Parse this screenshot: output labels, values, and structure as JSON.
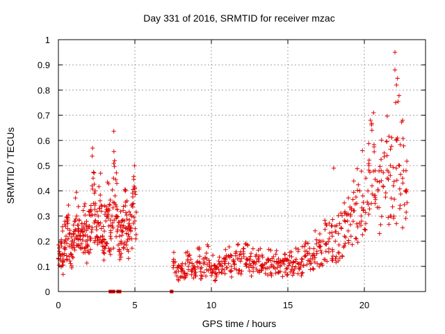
{
  "chart_data": {
    "type": "scatter",
    "title": "Day 331 of 2016, SRMTID for receiver mzac",
    "xlabel": "GPS time / hours",
    "ylabel": "SRMTID / TECUs",
    "xlim": [
      0,
      24
    ],
    "ylim": [
      0,
      1
    ],
    "x_ticks": [
      "0",
      "5",
      "10",
      "15",
      "20"
    ],
    "y_ticks": [
      "0",
      "0.1",
      "0.2",
      "0.3",
      "0.4",
      "0.5",
      "0.6",
      "0.7",
      "0.8",
      "0.9",
      "1"
    ],
    "grid": true,
    "marker": "+",
    "color": "#e00000",
    "series": [
      {
        "name": "SRMTID",
        "segments": [
          {
            "x": [
              0.0,
              0.1,
              0.2,
              0.3,
              0.4,
              0.5,
              0.6,
              0.7,
              0.8,
              0.9,
              1.0,
              1.1,
              1.2,
              1.3,
              1.4,
              1.5,
              1.6,
              1.7,
              1.8,
              1.9,
              2.0,
              2.1,
              2.2,
              2.3,
              2.4,
              2.5,
              2.6,
              2.7,
              2.8,
              2.9,
              3.0,
              3.1,
              3.2,
              3.3,
              3.4,
              3.5,
              3.6,
              3.7,
              3.8,
              3.9,
              4.0,
              4.1,
              4.2,
              4.3,
              4.4,
              4.5,
              4.6,
              4.7,
              4.8,
              4.9,
              5.0
            ],
            "y": [
              0.13,
              0.15,
              0.18,
              0.12,
              0.2,
              0.22,
              0.25,
              0.18,
              0.15,
              0.2,
              0.23,
              0.28,
              0.3,
              0.25,
              0.22,
              0.19,
              0.24,
              0.27,
              0.2,
              0.22,
              0.26,
              0.32,
              0.42,
              0.35,
              0.28,
              0.22,
              0.3,
              0.33,
              0.25,
              0.2,
              0.24,
              0.28,
              0.3,
              0.26,
              0.22,
              0.3,
              0.45,
              0.38,
              0.3,
              0.26,
              0.22,
              0.2,
              0.24,
              0.28,
              0.25,
              0.2,
              0.22,
              0.25,
              0.3,
              0.35,
              0.28
            ]
          },
          {
            "x": [
              7.5,
              7.7,
              7.9,
              8.1,
              8.3,
              8.5,
              8.7,
              8.9,
              9.1,
              9.3,
              9.5,
              9.7,
              9.9,
              10.1,
              10.3,
              10.5,
              10.7,
              10.9,
              11.1,
              11.3,
              11.5,
              11.7,
              11.9,
              12.1,
              12.3,
              12.5,
              12.7,
              12.9,
              13.1,
              13.3,
              13.5,
              13.7,
              13.9,
              14.1,
              14.3,
              14.5,
              14.7,
              14.9,
              15.1,
              15.3,
              15.5,
              15.7,
              15.9,
              16.1,
              16.3,
              16.5,
              16.7,
              16.9,
              17.1,
              17.3,
              17.5,
              17.7,
              17.9,
              18.1,
              18.3,
              18.5,
              18.7,
              18.9,
              19.1,
              19.3,
              19.5,
              19.7,
              19.9,
              20.1,
              20.3,
              20.5,
              20.7,
              20.9,
              21.1,
              21.3,
              21.5,
              21.7,
              21.9,
              22.1,
              22.3,
              22.5,
              22.7
            ],
            "y": [
              0.12,
              0.08,
              0.1,
              0.09,
              0.11,
              0.1,
              0.08,
              0.1,
              0.12,
              0.09,
              0.11,
              0.13,
              0.1,
              0.08,
              0.09,
              0.11,
              0.1,
              0.12,
              0.14,
              0.1,
              0.11,
              0.13,
              0.12,
              0.15,
              0.13,
              0.11,
              0.12,
              0.14,
              0.12,
              0.1,
              0.11,
              0.13,
              0.1,
              0.12,
              0.11,
              0.1,
              0.12,
              0.09,
              0.11,
              0.1,
              0.12,
              0.11,
              0.13,
              0.14,
              0.15,
              0.13,
              0.17,
              0.16,
              0.18,
              0.2,
              0.19,
              0.21,
              0.22,
              0.2,
              0.23,
              0.25,
              0.22,
              0.28,
              0.3,
              0.32,
              0.35,
              0.4,
              0.38,
              0.45,
              0.5,
              0.42,
              0.35,
              0.4,
              0.48,
              0.55,
              0.45,
              0.5,
              0.42,
              0.6,
              0.5,
              0.45,
              0.4
            ]
          }
        ],
        "notable_points": [
          {
            "x": 22.0,
            "y": 0.95
          },
          {
            "x": 22.0,
            "y": 0.88
          },
          {
            "x": 22.1,
            "y": 0.82
          },
          {
            "x": 22.05,
            "y": 0.75
          },
          {
            "x": 20.6,
            "y": 0.71
          },
          {
            "x": 20.4,
            "y": 0.68
          },
          {
            "x": 22.5,
            "y": 0.68
          },
          {
            "x": 18.0,
            "y": 0.49
          }
        ],
        "zero_points": [
          3.4,
          3.6,
          3.9,
          4.0,
          7.4
        ]
      }
    ]
  }
}
